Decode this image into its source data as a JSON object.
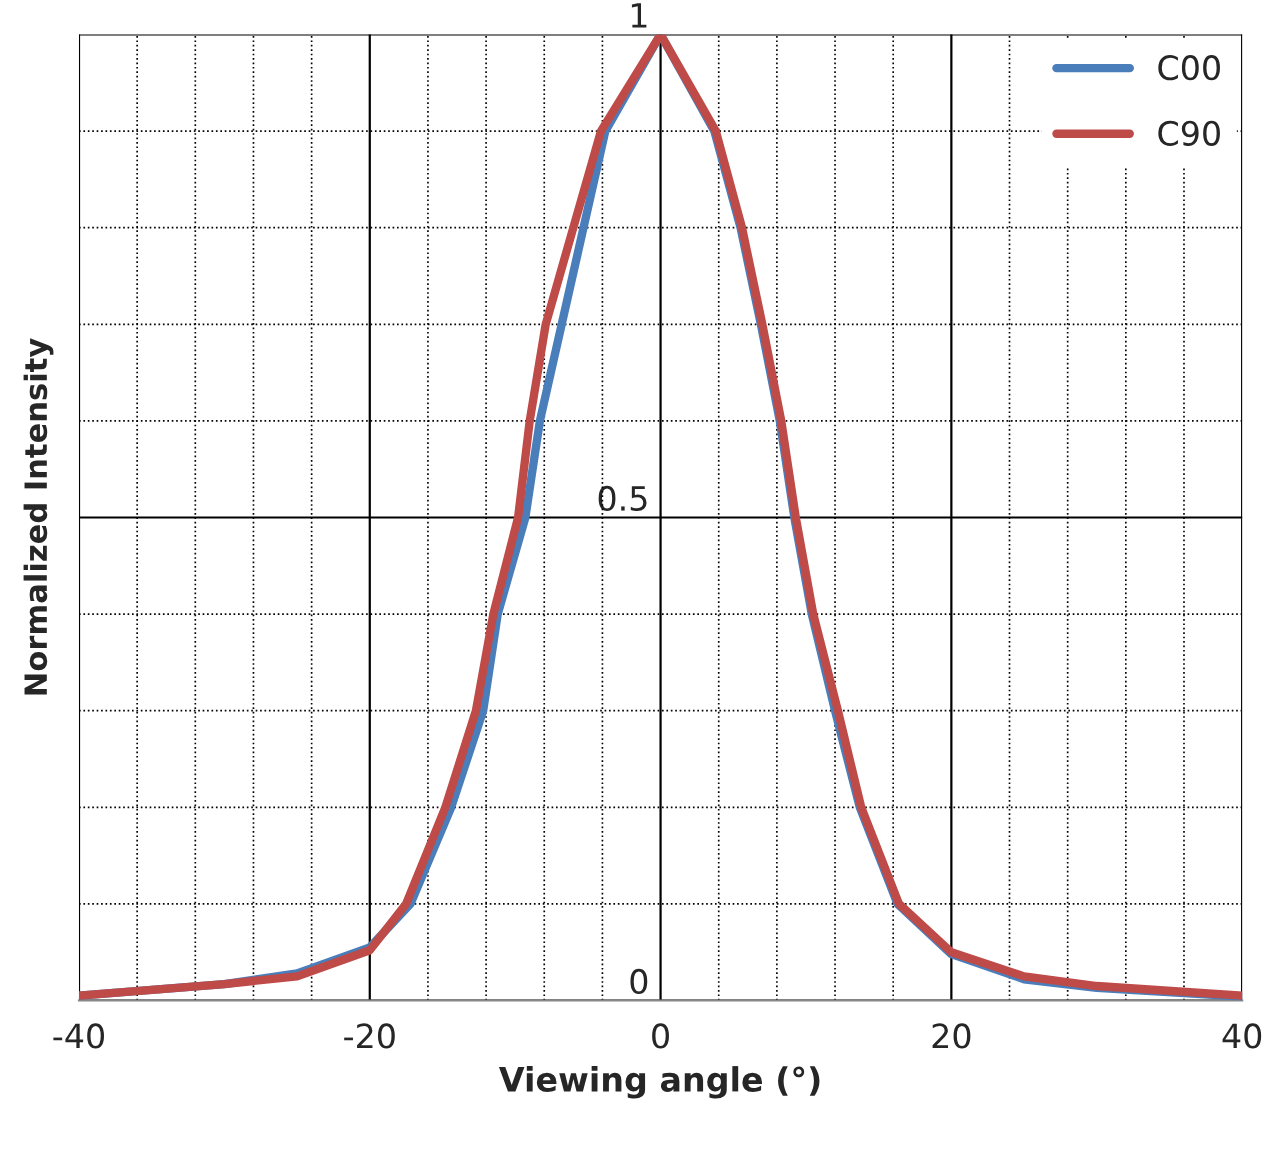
{
  "chart_data": {
    "type": "line",
    "xlabel": "Viewing angle (°)",
    "ylabel": "Normalized Intensity",
    "xlim": [
      -40,
      40
    ],
    "ylim": [
      0,
      1
    ],
    "xticks": [
      -40,
      {
        "value": -36,
        "label": null
      },
      {
        "value": -32,
        "label": null
      },
      {
        "value": -28,
        "label": null
      },
      {
        "value": -24,
        "label": null
      },
      -20,
      {
        "value": -16,
        "label": null
      },
      {
        "value": -12,
        "label": null
      },
      {
        "value": -8,
        "label": null
      },
      {
        "value": -4,
        "label": null
      },
      0,
      {
        "value": 4,
        "label": null
      },
      {
        "value": 8,
        "label": null
      },
      {
        "value": 12,
        "label": null
      },
      {
        "value": 16,
        "label": null
      },
      20,
      {
        "value": 24,
        "label": null
      },
      {
        "value": 28,
        "label": null
      },
      {
        "value": 32,
        "label": null
      },
      {
        "value": 36,
        "label": null
      },
      40
    ],
    "yticks": [
      0,
      {
        "value": 0.1,
        "label": null
      },
      {
        "value": 0.2,
        "label": null
      },
      {
        "value": 0.3,
        "label": null
      },
      {
        "value": 0.4,
        "label": null
      },
      0.5,
      {
        "value": 0.6,
        "label": null
      },
      {
        "value": 0.7,
        "label": null
      },
      {
        "value": 0.8,
        "label": null
      },
      {
        "value": 0.9,
        "label": null
      },
      1
    ],
    "grid": true,
    "legend": "top right",
    "marker": "none",
    "line_style": "solid",
    "series": [
      {
        "name": "C00",
        "color": "#4a7ebb",
        "x": [
          -40,
          -30,
          -25,
          -20,
          -17.2,
          -14.4,
          -12.2,
          -11.2,
          -9.3,
          -8.3,
          -5.3,
          -3.8,
          0,
          3.7,
          5.5,
          6.9,
          8.2,
          9.2,
          10.4,
          12.0,
          13.7,
          16.3,
          20,
          25,
          30,
          40
        ],
        "values": [
          0.005,
          0.017,
          0.028,
          0.055,
          0.1,
          0.2,
          0.3,
          0.4,
          0.5,
          0.6,
          0.8,
          0.9,
          1,
          0.9,
          0.8,
          0.7,
          0.6,
          0.5,
          0.4,
          0.3,
          0.2,
          0.1,
          0.048,
          0.022,
          0.013,
          0.004
        ]
      },
      {
        "name": "C90",
        "color": "#be4b48",
        "x": [
          -40,
          -30,
          -25,
          -20,
          -17.5,
          -14.8,
          -12.7,
          -11.5,
          -9.8,
          -9.0,
          -7.9,
          -6.0,
          -4.1,
          0,
          3.8,
          5.6,
          7.0,
          8.3,
          9.3,
          10.5,
          12.2,
          13.8,
          16.4,
          20,
          25,
          30,
          40
        ],
        "values": [
          0.005,
          0.017,
          0.025,
          0.052,
          0.1,
          0.2,
          0.3,
          0.4,
          0.5,
          0.6,
          0.7,
          0.8,
          0.9,
          1,
          0.9,
          0.8,
          0.7,
          0.6,
          0.5,
          0.4,
          0.3,
          0.2,
          0.1,
          0.05,
          0.025,
          0.015,
          0.005
        ]
      }
    ]
  }
}
